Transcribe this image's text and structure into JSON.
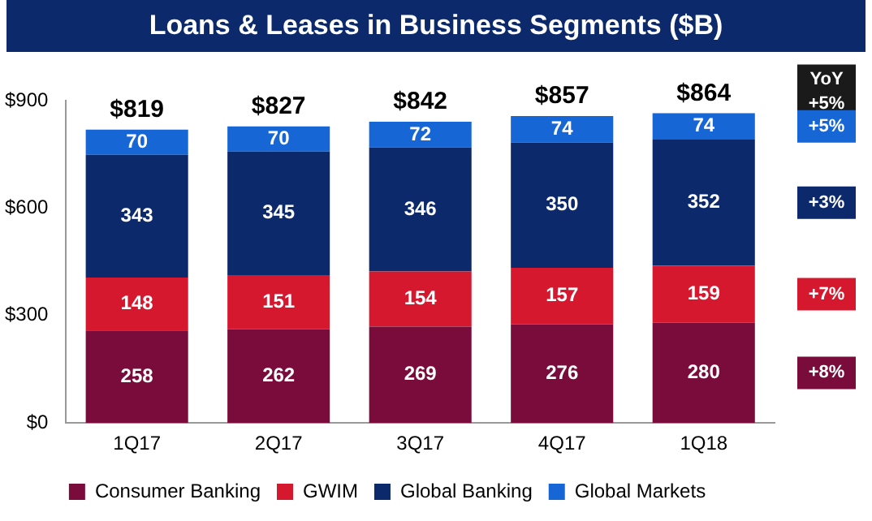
{
  "chart_data": {
    "type": "bar",
    "title": "Loans & Leases in Business Segments ($B)",
    "categories": [
      "1Q17",
      "2Q17",
      "3Q17",
      "4Q17",
      "1Q18"
    ],
    "stacked": true,
    "data_labels": true,
    "grid": false,
    "legend": "bottom",
    "series": [
      {
        "name": "Consumer Banking",
        "color": "#7a0c3c",
        "values": [
          258,
          262,
          269,
          276,
          280
        ]
      },
      {
        "name": "GWIM",
        "color": "#d6182f",
        "values": [
          148,
          151,
          154,
          157,
          159
        ]
      },
      {
        "name": "Global Banking",
        "color": "#0c2a6b",
        "values": [
          343,
          345,
          346,
          350,
          352
        ]
      },
      {
        "name": "Global Markets",
        "color": "#1666d6",
        "values": [
          70,
          70,
          72,
          74,
          74
        ]
      }
    ],
    "totals": [
      "$819",
      "$827",
      "$842",
      "$857",
      "$864"
    ],
    "ylim": [
      0,
      900
    ],
    "yticks": [
      {
        "value": 0,
        "label": "$0"
      },
      {
        "value": 300,
        "label": "$300"
      },
      {
        "value": 600,
        "label": "$600"
      },
      {
        "value": 900,
        "label": "$900"
      }
    ],
    "annotations": [
      "YoY",
      "+5%",
      "+5%",
      "+3%",
      "+7%",
      "+8%"
    ]
  }
}
